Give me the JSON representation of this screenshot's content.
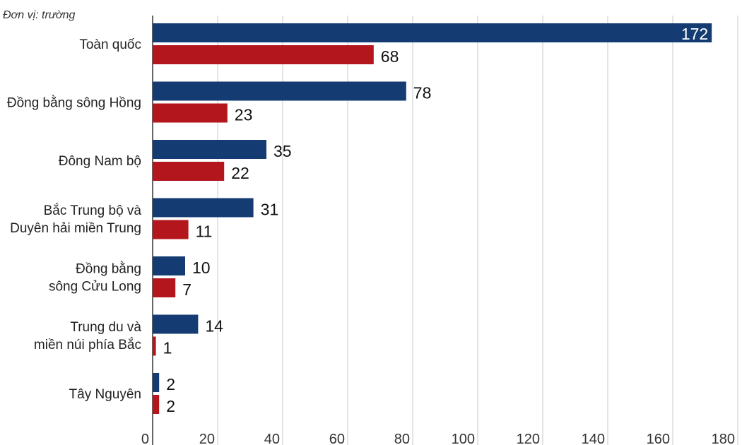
{
  "chart_data": {
    "type": "bar",
    "orientation": "horizontal",
    "unit_label": "Đơn vị: trường",
    "categories": [
      [
        "Toàn quốc"
      ],
      [
        "Đồng bằng sông Hồng"
      ],
      [
        "Đông Nam bộ"
      ],
      [
        "Bắc Trung bộ và",
        "Duyên hải miền Trung"
      ],
      [
        "Đồng bằng",
        "sông Cửu Long"
      ],
      [
        "Trung du và",
        "miền núi phía Bắc"
      ],
      [
        "Tây Nguyên"
      ]
    ],
    "series": [
      {
        "values": [
          172,
          78,
          35,
          31,
          10,
          14,
          2
        ],
        "color": "#143c73"
      },
      {
        "values": [
          68,
          23,
          22,
          11,
          7,
          1,
          2
        ],
        "color": "#b3171d"
      }
    ],
    "xlim": [
      0,
      180
    ],
    "xticks": [
      0,
      20,
      40,
      60,
      80,
      100,
      120,
      140,
      160,
      180
    ],
    "grid": true
  }
}
